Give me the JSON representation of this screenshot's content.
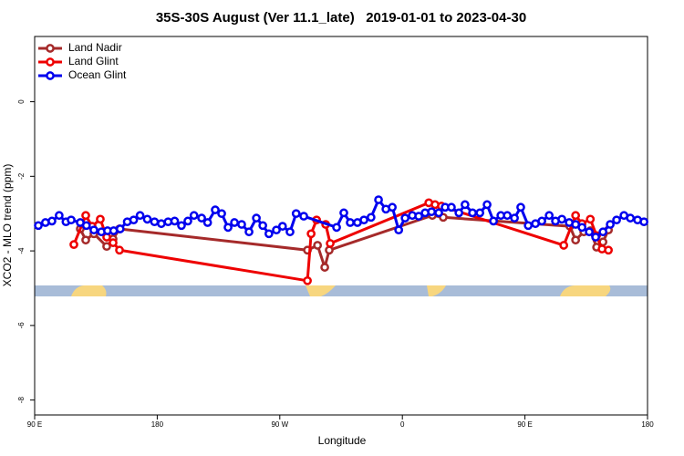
{
  "chart_data": {
    "type": "line",
    "title": "35S-30S August (Ver 11.1_late)   2019-01-01 to 2023-04-30",
    "x_label": "Longitude",
    "y_label": "XCO2 - MLO trend (ppm)",
    "xlim": [
      90,
      540
    ],
    "ylim": [
      -8.4,
      1.75
    ],
    "xticks": [
      {
        "value": 90,
        "label": "90 E"
      },
      180,
      {
        "value": 270,
        "label": "90 W"
      },
      {
        "value": 360,
        "label": "0"
      },
      {
        "value": 450,
        "label": "90 E"
      },
      {
        "value": 540,
        "label": "180"
      }
    ],
    "yticks": [
      0,
      -2,
      -4,
      -6,
      -8
    ],
    "legend": "top-left",
    "series": [
      {
        "name": "Land Nadir",
        "color": "#a52a2a",
        "x": [
          123.5,
          127.5,
          133.5,
          142.9,
          147.6,
          152.3,
          290.3,
          297.7,
          303,
          306.3,
          382,
          390,
          483,
          487.2,
          493.2,
          498,
          502.6,
          507.3,
          511.3
        ],
        "values": [
          -3.41,
          -3.71,
          -3.54,
          -3.88,
          -3.68,
          -3.41,
          -3.98,
          -3.85,
          -4.44,
          -3.98,
          -3.05,
          -3.1,
          -3.34,
          -3.71,
          -3.49,
          -3.46,
          -3.9,
          -3.76,
          -3.44
        ]
      },
      {
        "name": "Land Glint",
        "color": "#ee0000",
        "x": [
          118.8,
          127.5,
          132.2,
          138.2,
          142.9,
          147.6,
          152.3,
          290.3,
          293,
          297,
          303.7,
          307,
          379.4,
          384,
          388.7,
          478.5,
          487.2,
          491.9,
          498,
          502.6,
          506.6,
          511.3
        ],
        "values": [
          -3.83,
          -3.05,
          -3.34,
          -3.15,
          -3.63,
          -3.78,
          -3.98,
          -4.8,
          -3.54,
          -3.17,
          -3.29,
          -3.8,
          -2.71,
          -2.76,
          -2.8,
          -3.85,
          -3.05,
          -3.27,
          -3.15,
          -3.59,
          -3.95,
          -3.98
        ]
      },
      {
        "name": "Ocean Glint",
        "color": "#0000ee",
        "x": [
          92.7,
          97.9,
          102.7,
          108,
          113,
          116.8,
          123.5,
          128,
          133.5,
          139,
          143.5,
          148,
          152.8,
          158,
          162.7,
          167.4,
          172.7,
          178,
          183,
          188,
          192.8,
          197.8,
          202.5,
          207,
          212.6,
          217,
          222.6,
          227.3,
          232,
          236.7,
          242,
          247.4,
          252.8,
          257.5,
          262,
          267.5,
          272,
          277.5,
          282,
          287.6,
          311.7,
          317,
          321.7,
          327,
          331.8,
          337,
          342.5,
          347.9,
          352.6,
          357.3,
          362,
          367.3,
          372,
          376.7,
          381.4,
          386.7,
          391.4,
          396,
          401.5,
          406,
          411.5,
          416.9,
          422.2,
          426.9,
          432.3,
          437,
          442.3,
          446.9,
          452.4,
          457.7,
          462.4,
          467.8,
          472.4,
          477.1,
          482.5,
          487.2,
          491.9,
          497.2,
          501.9,
          507.3,
          512.6,
          517.3,
          522.7,
          527.4,
          532.7,
          537.4
        ],
        "values": [
          -3.32,
          -3.24,
          -3.2,
          -3.05,
          -3.22,
          -3.17,
          -3.24,
          -3.32,
          -3.44,
          -3.49,
          -3.46,
          -3.46,
          -3.41,
          -3.22,
          -3.17,
          -3.05,
          -3.15,
          -3.22,
          -3.27,
          -3.22,
          -3.2,
          -3.32,
          -3.2,
          -3.05,
          -3.12,
          -3.24,
          -2.9,
          -3.0,
          -3.37,
          -3.24,
          -3.29,
          -3.49,
          -3.12,
          -3.32,
          -3.54,
          -3.44,
          -3.34,
          -3.49,
          -3.0,
          -3.07,
          -3.37,
          -2.98,
          -3.24,
          -3.24,
          -3.17,
          -3.1,
          -2.63,
          -2.88,
          -2.83,
          -3.44,
          -3.12,
          -3.05,
          -3.07,
          -2.98,
          -2.95,
          -2.98,
          -2.83,
          -2.83,
          -2.98,
          -2.76,
          -2.98,
          -2.98,
          -2.76,
          -3.2,
          -3.05,
          -3.05,
          -3.12,
          -2.83,
          -3.32,
          -3.27,
          -3.2,
          -3.05,
          -3.2,
          -3.15,
          -3.24,
          -3.29,
          -3.37,
          -3.49,
          -3.63,
          -3.49,
          -3.29,
          -3.17,
          -3.05,
          -3.12,
          -3.17,
          -3.22
        ]
      }
    ]
  }
}
